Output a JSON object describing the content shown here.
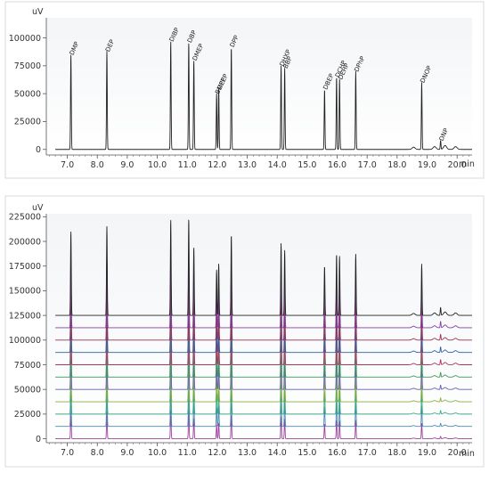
{
  "chart_data": [
    {
      "type": "line",
      "ylabel": "uV",
      "xunit": "min",
      "xlim": [
        6.3,
        20.5
      ],
      "ylim": [
        -5000,
        118000
      ],
      "xticks": [
        "7.0",
        "8.0",
        "9.0",
        "10.0",
        "11.0",
        "12.0",
        "13.0",
        "14.0",
        "15.0",
        "16.0",
        "17.0",
        "18.0",
        "19.0",
        "20.0"
      ],
      "yticks": [
        "0",
        "25000",
        "50000",
        "75000",
        "100000"
      ],
      "trace_color": "#222222",
      "peaks": [
        {
          "name": "DMP",
          "rt": 7.12,
          "height": 85000
        },
        {
          "name": "DEP",
          "rt": 8.32,
          "height": 88000
        },
        {
          "name": "DIBP",
          "rt": 10.45,
          "height": 97000
        },
        {
          "name": "DBP",
          "rt": 11.05,
          "height": 96000
        },
        {
          "name": "DMEP",
          "rt": 11.22,
          "height": 80000
        },
        {
          "name": "BMPP",
          "rt": 11.98,
          "height": 50000
        },
        {
          "name": "DEEP",
          "rt": 12.05,
          "height": 54000
        },
        {
          "name": "DPP",
          "rt": 12.47,
          "height": 92000
        },
        {
          "name": "DHXP",
          "rt": 14.13,
          "height": 75000
        },
        {
          "name": "BBP",
          "rt": 14.25,
          "height": 73000
        },
        {
          "name": "DBEP",
          "rt": 15.58,
          "height": 54000
        },
        {
          "name": "DCHP",
          "rt": 15.98,
          "height": 65000
        },
        {
          "name": "DEHP",
          "rt": 16.08,
          "height": 63000
        },
        {
          "name": "DPhP",
          "rt": 16.62,
          "height": 70000
        },
        {
          "name": "DNOP",
          "rt": 18.82,
          "height": 60000
        },
        {
          "name": "DNP",
          "rt": 19.45,
          "height": 8000
        }
      ]
    },
    {
      "type": "line",
      "ylabel": "uV",
      "xunit": "min",
      "xlim": [
        6.3,
        20.5
      ],
      "ylim": [
        -4000,
        228000
      ],
      "xticks": [
        "7.0",
        "8.0",
        "9.0",
        "10.0",
        "11.0",
        "12.0",
        "13.0",
        "14.0",
        "15.0",
        "16.0",
        "17.0",
        "18.0",
        "19.0",
        "20.0"
      ],
      "yticks": [
        "0",
        "25000",
        "50000",
        "75000",
        "100000",
        "125000",
        "150000",
        "175000",
        "200000",
        "225000"
      ],
      "series": [
        {
          "offset": 0,
          "scale": 0.3,
          "color": "#a040a0"
        },
        {
          "offset": 12500,
          "scale": 0.4,
          "color": "#4a8ab0"
        },
        {
          "offset": 25000,
          "scale": 0.45,
          "color": "#3aaa8a"
        },
        {
          "offset": 37500,
          "scale": 0.5,
          "color": "#8ab040"
        },
        {
          "offset": 50000,
          "scale": 0.55,
          "color": "#6060b0"
        },
        {
          "offset": 62500,
          "scale": 0.6,
          "color": "#3a9a5a"
        },
        {
          "offset": 75000,
          "scale": 0.65,
          "color": "#b03060"
        },
        {
          "offset": 87500,
          "scale": 0.7,
          "color": "#3060a0"
        },
        {
          "offset": 100000,
          "scale": 0.72,
          "color": "#a03050"
        },
        {
          "offset": 112500,
          "scale": 0.8,
          "color": "#8040a0"
        },
        {
          "offset": 125000,
          "scale": 1.0,
          "color": "#222222"
        }
      ],
      "peaks": [
        {
          "rt": 7.12,
          "height": 85000
        },
        {
          "rt": 8.32,
          "height": 90000
        },
        {
          "rt": 10.45,
          "height": 97000
        },
        {
          "rt": 11.05,
          "height": 98000
        },
        {
          "rt": 11.22,
          "height": 69000
        },
        {
          "rt": 11.98,
          "height": 46000
        },
        {
          "rt": 12.05,
          "height": 52000
        },
        {
          "rt": 12.47,
          "height": 82000
        },
        {
          "rt": 14.13,
          "height": 73000
        },
        {
          "rt": 14.25,
          "height": 66000
        },
        {
          "rt": 15.58,
          "height": 50000
        },
        {
          "rt": 15.98,
          "height": 62000
        },
        {
          "rt": 16.08,
          "height": 60000
        },
        {
          "rt": 16.62,
          "height": 62000
        },
        {
          "rt": 18.82,
          "height": 52000
        },
        {
          "rt": 19.45,
          "height": 8000
        }
      ]
    }
  ]
}
